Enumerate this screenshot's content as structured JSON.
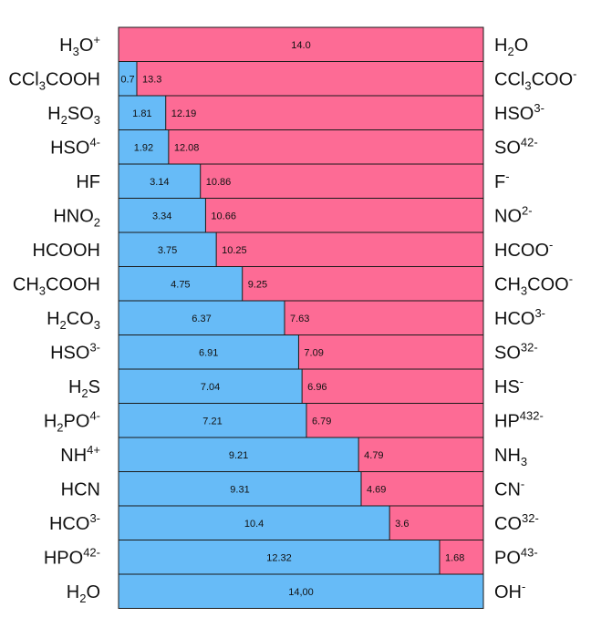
{
  "chart_data": {
    "type": "bar",
    "stacked": true,
    "orientation": "horizontal",
    "xlim": [
      0,
      14
    ],
    "grid": false,
    "legend": "none",
    "colors": {
      "acid": "#67bbf7",
      "base": "#fd6b95",
      "stroke": "#1a1a1a"
    },
    "rows": [
      {
        "acid": "H3O+",
        "base": "H2O",
        "pKa": 0,
        "pKb": 14,
        "pKa_label": "",
        "pKb_label": "14.0"
      },
      {
        "acid": "CCl3COOH",
        "base": "CCl3COO-",
        "pKa": 0.7,
        "pKb": 13.3,
        "pKa_label": "0.7",
        "pKb_label": "13.3"
      },
      {
        "acid": "H2SO3",
        "base": "HSO3-",
        "pKa": 1.81,
        "pKb": 12.19,
        "pKa_label": "1.81",
        "pKb_label": "12.19"
      },
      {
        "acid": "HSO4-",
        "base": "SO42-",
        "pKa": 1.92,
        "pKb": 12.08,
        "pKa_label": "1.92",
        "pKb_label": "12.08"
      },
      {
        "acid": "HF",
        "base": "F-",
        "pKa": 3.14,
        "pKb": 10.86,
        "pKa_label": "3.14",
        "pKb_label": "10.86"
      },
      {
        "acid": "HNO2",
        "base": "NO2-",
        "pKa": 3.34,
        "pKb": 10.66,
        "pKa_label": "3.34",
        "pKb_label": "10.66"
      },
      {
        "acid": "HCOOH",
        "base": "HCOO-",
        "pKa": 3.75,
        "pKb": 10.25,
        "pKa_label": "3.75",
        "pKb_label": "10.25"
      },
      {
        "acid": "CH3COOH",
        "base": "CH3COO-",
        "pKa": 4.75,
        "pKb": 9.25,
        "pKa_label": "4.75",
        "pKb_label": "9.25"
      },
      {
        "acid": "H2CO3",
        "base": "HCO3-",
        "pKa": 6.37,
        "pKb": 7.63,
        "pKa_label": "6.37",
        "pKb_label": "7.63"
      },
      {
        "acid": "HSO3-",
        "base": "SO32-",
        "pKa": 6.91,
        "pKb": 7.09,
        "pKa_label": "6.91",
        "pKb_label": "7.09"
      },
      {
        "acid": "H2S",
        "base": "HS-",
        "pKa": 7.04,
        "pKb": 6.96,
        "pKa_label": "7.04",
        "pKb_label": "6.96"
      },
      {
        "acid": "H2PO4-",
        "base": "HP432-",
        "pKa": 7.21,
        "pKb": 6.79,
        "pKa_label": "7.21",
        "pKb_label": "6.79"
      },
      {
        "acid": "NH4+",
        "base": "NH3",
        "pKa": 9.21,
        "pKb": 4.79,
        "pKa_label": "9.21",
        "pKb_label": "4.79"
      },
      {
        "acid": "HCN",
        "base": "CN-",
        "pKa": 9.31,
        "pKb": 4.69,
        "pKa_label": "9.31",
        "pKb_label": "4.69"
      },
      {
        "acid": "HCO3-",
        "base": "CO32-",
        "pKa": 10.4,
        "pKb": 3.6,
        "pKa_label": "10.4",
        "pKb_label": "3.6"
      },
      {
        "acid": "HPO42-",
        "base": "PO43-",
        "pKa": 12.32,
        "pKb": 1.68,
        "pKa_label": "12.32",
        "pKb_label": "1.68"
      },
      {
        "acid": "H2O",
        "base": "OH-",
        "pKa": 14,
        "pKb": 0,
        "pKa_label": "14,00",
        "pKb_label": ""
      }
    ]
  }
}
